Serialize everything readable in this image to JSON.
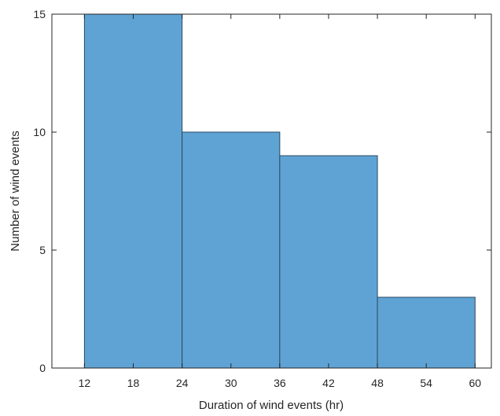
{
  "chart_data": {
    "type": "bar",
    "subtype": "histogram",
    "title": "",
    "xlabel": "Duration of wind events (hr)",
    "ylabel": "Number of wind events",
    "bins": [
      {
        "x0": 12,
        "x1": 24,
        "value": 15
      },
      {
        "x0": 24,
        "x1": 36,
        "value": 10
      },
      {
        "x0": 36,
        "x1": 48,
        "value": 9
      },
      {
        "x0": 48,
        "x1": 60,
        "value": 3
      }
    ],
    "xlim": [
      8,
      62
    ],
    "ylim": [
      0,
      15
    ],
    "xticks": [
      "12",
      "18",
      "24",
      "30",
      "36",
      "42",
      "48",
      "54",
      "60"
    ],
    "yticks": [
      "0",
      "5",
      "10",
      "15"
    ],
    "grid": false,
    "legend": "none",
    "colors": {
      "bar_fill": "#5fa3d4",
      "bar_edge": "#2b4a63",
      "axis": "#262626"
    }
  }
}
